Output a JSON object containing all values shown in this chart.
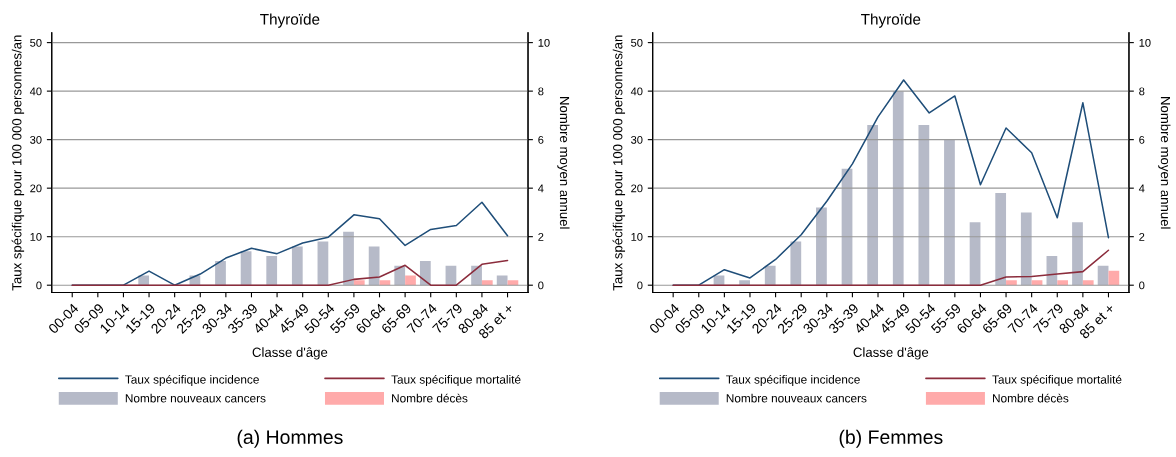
{
  "chart_data": [
    {
      "type": "bar",
      "title": "Thyroïde",
      "xlabel": "Classe d'âge",
      "ylabel": "Taux spécifique pour 100 000 personnes/an",
      "y2label": "Nombre moyen annuel",
      "categories": [
        "00-04",
        "05-09",
        "10-14",
        "15-19",
        "20-24",
        "25-29",
        "30-34",
        "35-39",
        "40-44",
        "45-49",
        "50-54",
        "55-59",
        "60-64",
        "65-69",
        "70-74",
        "75-79",
        "80-84",
        "85 et +"
      ],
      "series": [
        {
          "name": "Taux spécifique incidence",
          "type": "line",
          "color": "#1f4e79",
          "values": [
            0,
            0,
            0,
            2.9,
            0,
            2.3,
            5.6,
            7.6,
            6.5,
            8.7,
            9.9,
            14.5,
            13.7,
            8.2,
            11.5,
            12.3,
            17.1,
            10.2
          ]
        },
        {
          "name": "Nombre nouveaux cancers",
          "axis": "y2",
          "color": "#b6bac8",
          "values": [
            0,
            0,
            0,
            0.4,
            0,
            0.4,
            1.0,
            1.4,
            1.2,
            1.6,
            1.8,
            2.2,
            1.6,
            0.8,
            1.0,
            0.8,
            0.8,
            0.4
          ]
        },
        {
          "name": "Taux spécifique mortalité",
          "type": "line",
          "color": "#8b2c3c",
          "values": [
            0,
            0,
            0,
            0,
            0,
            0,
            0,
            0,
            0,
            0,
            0,
            1.2,
            1.7,
            4.1,
            0,
            0,
            4.3,
            5.1
          ]
        },
        {
          "name": "Nombre décès",
          "axis": "y2",
          "color": "#ffaaaa",
          "values": [
            0,
            0,
            0,
            0,
            0,
            0,
            0,
            0,
            0,
            0,
            0,
            0.2,
            0.2,
            0.4,
            0,
            0,
            0.2,
            0.2
          ]
        }
      ],
      "ylim": [
        -1.5,
        52
      ],
      "yticks": [
        0,
        10,
        20,
        30,
        40,
        50
      ],
      "y2lim": [
        -0.3,
        10.4
      ],
      "y2ticks": [
        0,
        2,
        4,
        6,
        8,
        10
      ],
      "grid": "y",
      "legend": "bottom",
      "marker": "none",
      "line_style": "solid",
      "annotations": [
        "(a) Hommes"
      ]
    },
    {
      "type": "bar",
      "title": "Thyroïde",
      "xlabel": "Classe d'âge",
      "ylabel": "Taux spécifique pour 100 000 personnes/an",
      "y2label": "Nombre moyen annuel",
      "categories": [
        "00-04",
        "05-09",
        "10-14",
        "15-19",
        "20-24",
        "25-29",
        "30-34",
        "35-39",
        "40-44",
        "45-49",
        "50-54",
        "55-59",
        "60-64",
        "65-69",
        "70-74",
        "75-79",
        "80-84",
        "85 et +"
      ],
      "series": [
        {
          "name": "Taux spécifique incidence",
          "type": "line",
          "color": "#1f4e79",
          "values": [
            0,
            0,
            3.2,
            1.5,
            5.3,
            10.4,
            17.3,
            25,
            34.7,
            42.3,
            35.5,
            39,
            20.7,
            32.4,
            27.3,
            13.9,
            37.6,
            9.8
          ]
        },
        {
          "name": "Nombre nouveaux cancers",
          "axis": "y2",
          "color": "#b6bac8",
          "values": [
            0,
            0,
            0.4,
            0.2,
            0.8,
            1.8,
            3.2,
            4.8,
            6.6,
            8.0,
            6.6,
            6.0,
            2.6,
            3.8,
            3.0,
            1.2,
            2.6,
            0.8
          ]
        },
        {
          "name": "Taux spécifique mortalité",
          "type": "line",
          "color": "#8b2c3c",
          "values": [
            0,
            0,
            0,
            0,
            0,
            0,
            0,
            0,
            0,
            0,
            0,
            0,
            0,
            1.7,
            1.8,
            2.3,
            2.8,
            7.2
          ]
        },
        {
          "name": "Nombre décès",
          "axis": "y2",
          "color": "#ffaaaa",
          "values": [
            0,
            0,
            0,
            0,
            0,
            0,
            0,
            0,
            0,
            0,
            0,
            0,
            0,
            0.2,
            0.2,
            0.2,
            0.2,
            0.6
          ]
        }
      ],
      "ylim": [
        -1.5,
        52
      ],
      "yticks": [
        0,
        10,
        20,
        30,
        40,
        50
      ],
      "y2lim": [
        -0.3,
        10.4
      ],
      "y2ticks": [
        0,
        2,
        4,
        6,
        8,
        10
      ],
      "grid": "y",
      "legend": "bottom",
      "marker": "none",
      "line_style": "solid",
      "annotations": [
        "(b) Femmes"
      ]
    }
  ]
}
